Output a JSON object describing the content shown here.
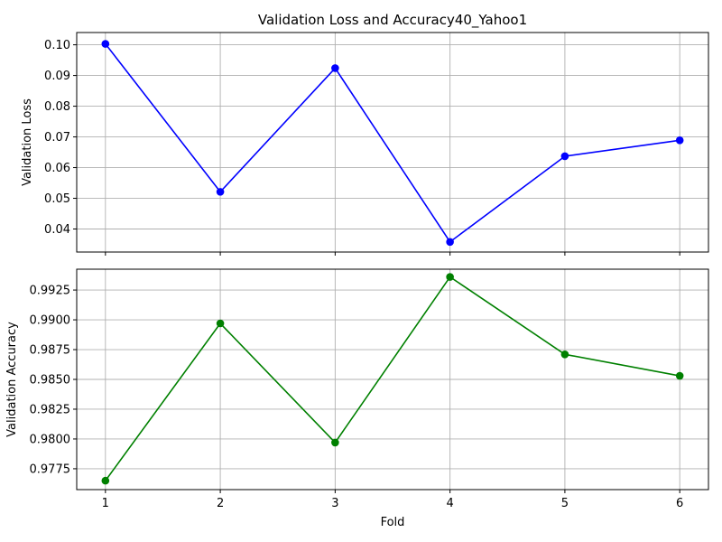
{
  "chart_data": [
    {
      "type": "line",
      "title": "Validation Loss and Accuracy40_Yahoo1",
      "xlabel": "",
      "ylabel": "Validation Loss",
      "x": [
        1,
        2,
        3,
        4,
        5,
        6
      ],
      "xticks": [
        "1",
        "2",
        "3",
        "4",
        "5",
        "6"
      ],
      "show_xtick_labels": false,
      "ylim": [
        0.0325,
        0.104
      ],
      "yticks": [
        0.04,
        0.05,
        0.06,
        0.07,
        0.08,
        0.09,
        0.1
      ],
      "ytick_labels": [
        "0.04",
        "0.05",
        "0.06",
        "0.07",
        "0.08",
        "0.09",
        "0.10"
      ],
      "grid": true,
      "marker": "circle",
      "series": [
        {
          "values": [
            0.1003,
            0.0521,
            0.0924,
            0.0358,
            0.0637,
            0.0689
          ],
          "color": "#0000ff"
        }
      ]
    },
    {
      "type": "line",
      "title": "",
      "xlabel": "Fold",
      "ylabel": "Validation Accuracy",
      "x": [
        1,
        2,
        3,
        4,
        5,
        6
      ],
      "xticks": [
        "1",
        "2",
        "3",
        "4",
        "5",
        "6"
      ],
      "show_xtick_labels": true,
      "ylim": [
        0.97575,
        0.99425
      ],
      "yticks": [
        0.9775,
        0.98,
        0.9825,
        0.985,
        0.9875,
        0.99,
        0.9925
      ],
      "ytick_labels": [
        "0.9775",
        "0.9800",
        "0.9825",
        "0.9850",
        "0.9875",
        "0.9900",
        "0.9925"
      ],
      "grid": true,
      "marker": "circle",
      "series": [
        {
          "values": [
            0.9765,
            0.9897,
            0.9797,
            0.9936,
            0.9871,
            0.9853
          ],
          "color": "#008000"
        }
      ]
    }
  ]
}
